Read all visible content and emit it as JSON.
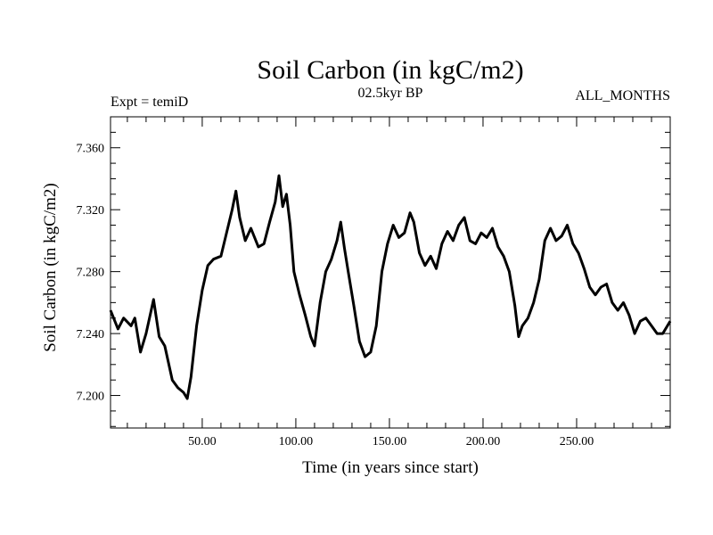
{
  "chart_data": {
    "type": "line",
    "title": "Soil Carbon (in kgC/m2)",
    "subtitle_left": "Expt = temiD",
    "subtitle_center": "02.5kyr BP",
    "subtitle_right": "ALL_MONTHS",
    "xlabel": "Time (in years since start)",
    "ylabel": "Soil Carbon (in kgC/m2)",
    "xlim": [
      1,
      300
    ],
    "ylim": [
      7.179,
      7.38
    ],
    "xticks": [
      50,
      100,
      150,
      200,
      250
    ],
    "xtick_labels": [
      "50.00",
      "100.00",
      "150.00",
      "200.00",
      "250.00"
    ],
    "yticks": [
      7.2,
      7.24,
      7.28,
      7.32,
      7.36
    ],
    "ytick_labels": [
      "7.200",
      "7.240",
      "7.280",
      "7.320",
      "7.360"
    ],
    "series": [
      {
        "name": "Soil Carbon",
        "color": "#000000",
        "x": [
          1,
          5,
          8,
          12,
          14,
          17,
          20,
          24,
          27,
          30,
          34,
          37,
          40,
          42,
          44,
          47,
          50,
          53,
          56,
          60,
          63,
          66,
          68,
          70,
          73,
          76,
          80,
          83,
          86,
          89,
          91,
          93,
          95,
          97,
          99,
          102,
          105,
          108,
          110,
          113,
          116,
          119,
          122,
          124,
          126,
          128,
          131,
          134,
          137,
          140,
          143,
          146,
          149,
          152,
          155,
          158,
          161,
          163,
          166,
          169,
          172,
          175,
          178,
          181,
          184,
          187,
          190,
          193,
          196,
          199,
          202,
          205,
          208,
          211,
          214,
          217,
          219,
          221,
          224,
          227,
          230,
          233,
          236,
          239,
          242,
          245,
          248,
          251,
          254,
          257,
          260,
          263,
          266,
          269,
          272,
          275,
          278,
          281,
          284,
          287,
          290,
          293,
          296,
          300
        ],
        "values": [
          7.255,
          7.243,
          7.25,
          7.245,
          7.25,
          7.228,
          7.24,
          7.262,
          7.238,
          7.232,
          7.21,
          7.205,
          7.202,
          7.198,
          7.212,
          7.245,
          7.268,
          7.284,
          7.288,
          7.29,
          7.305,
          7.32,
          7.332,
          7.315,
          7.3,
          7.308,
          7.296,
          7.298,
          7.312,
          7.325,
          7.342,
          7.322,
          7.33,
          7.31,
          7.28,
          7.265,
          7.252,
          7.238,
          7.232,
          7.26,
          7.28,
          7.288,
          7.3,
          7.312,
          7.295,
          7.28,
          7.258,
          7.235,
          7.225,
          7.228,
          7.245,
          7.28,
          7.298,
          7.31,
          7.302,
          7.305,
          7.318,
          7.312,
          7.292,
          7.284,
          7.29,
          7.282,
          7.298,
          7.306,
          7.3,
          7.31,
          7.315,
          7.3,
          7.298,
          7.305,
          7.302,
          7.308,
          7.296,
          7.29,
          7.28,
          7.258,
          7.238,
          7.245,
          7.25,
          7.26,
          7.275,
          7.3,
          7.308,
          7.3,
          7.303,
          7.31,
          7.298,
          7.292,
          7.282,
          7.27,
          7.265,
          7.27,
          7.272,
          7.26,
          7.255,
          7.26,
          7.252,
          7.24,
          7.248,
          7.25,
          7.245,
          7.24,
          7.24,
          7.248
        ]
      }
    ]
  }
}
